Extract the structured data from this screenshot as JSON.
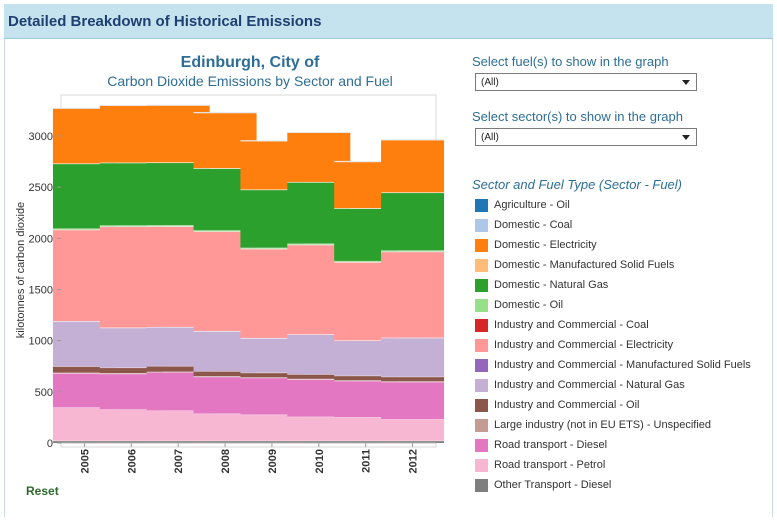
{
  "header": {
    "title": "Detailed Breakdown of Historical Emissions"
  },
  "controls": {
    "fuel_label": "Select fuel(s) to show in the graph",
    "fuel_value": "(All)",
    "sector_label": "Select sector(s) to show in the graph",
    "sector_value": "(All)",
    "reset_label": "Reset"
  },
  "legend_title": "Sector and Fuel Type (Sector - Fuel)",
  "chart_data": {
    "type": "bar",
    "stacked": true,
    "title": "Edinburgh, City of",
    "subtitle": "Carbon Dioxide Emissions by Sector and Fuel",
    "xlabel": "",
    "ylabel": "kilotonnes of carbon dioxide",
    "ylim": [
      0,
      3400
    ],
    "yticks": [
      0,
      500,
      1000,
      1500,
      2000,
      2500,
      3000
    ],
    "grid": false,
    "legend_position": "right",
    "categories": [
      "2005",
      "2006",
      "2007",
      "2008",
      "2009",
      "2010",
      "2011",
      "2012"
    ],
    "series": [
      {
        "name": "Agriculture - Oil",
        "color": "#1f77b4",
        "values": [
          2,
          2,
          2,
          2,
          2,
          2,
          2,
          2
        ]
      },
      {
        "name": "Domestic - Coal",
        "color": "#aec7e8",
        "values": [
          5,
          5,
          5,
          5,
          5,
          5,
          5,
          5
        ]
      },
      {
        "name": "Domestic - Electricity",
        "color": "#ff7f0e",
        "values": [
          538,
          557,
          557,
          540,
          474,
          484,
          453,
          512
        ]
      },
      {
        "name": "Domestic - Manufactured Solid Fuels",
        "color": "#ffbb78",
        "values": [
          3,
          3,
          3,
          3,
          3,
          3,
          3,
          3
        ]
      },
      {
        "name": "Domestic - Natural Gas",
        "color": "#2ca02c",
        "values": [
          633,
          611,
          611,
          605,
          566,
          599,
          514,
          565
        ]
      },
      {
        "name": "Domestic - Oil",
        "color": "#98df8a",
        "values": [
          10,
          10,
          10,
          10,
          10,
          10,
          10,
          10
        ]
      },
      {
        "name": "Industry and Commercial - Coal",
        "color": "#d62728",
        "values": [
          2,
          2,
          2,
          2,
          2,
          2,
          2,
          2
        ]
      },
      {
        "name": "Industry and Commercial - Electricity",
        "color": "#ff9896",
        "values": [
          892,
          986,
          982,
          972,
          870,
          874,
          763,
          840
        ]
      },
      {
        "name": "Industry and Commercial - Manufactured Solid Fuels",
        "color": "#9467bd",
        "values": [
          2,
          2,
          2,
          2,
          2,
          2,
          2,
          2
        ]
      },
      {
        "name": "Industry and Commercial - Natural Gas",
        "color": "#c5b0d5",
        "values": [
          440,
          389,
          380,
          390,
          337,
          388,
          344,
          380
        ]
      },
      {
        "name": "Industry and Commercial - Oil",
        "color": "#8c564b",
        "values": [
          62,
          55,
          55,
          50,
          45,
          45,
          45,
          45
        ]
      },
      {
        "name": "Large industry (not in EU ETS) - Unspecified",
        "color": "#c49c94",
        "values": [
          5,
          5,
          5,
          5,
          5,
          5,
          5,
          5
        ]
      },
      {
        "name": "Road transport - Diesel",
        "color": "#e377c2",
        "values": [
          335,
          350,
          375,
          360,
          360,
          365,
          355,
          365
        ]
      },
      {
        "name": "Road transport - Petrol",
        "color": "#f7b6d2",
        "values": [
          325,
          305,
          295,
          265,
          255,
          235,
          230,
          210
        ]
      },
      {
        "name": "Other Transport - Diesel",
        "color": "#7f7f7f",
        "values": [
          20,
          20,
          20,
          20,
          20,
          20,
          20,
          20
        ]
      }
    ]
  }
}
